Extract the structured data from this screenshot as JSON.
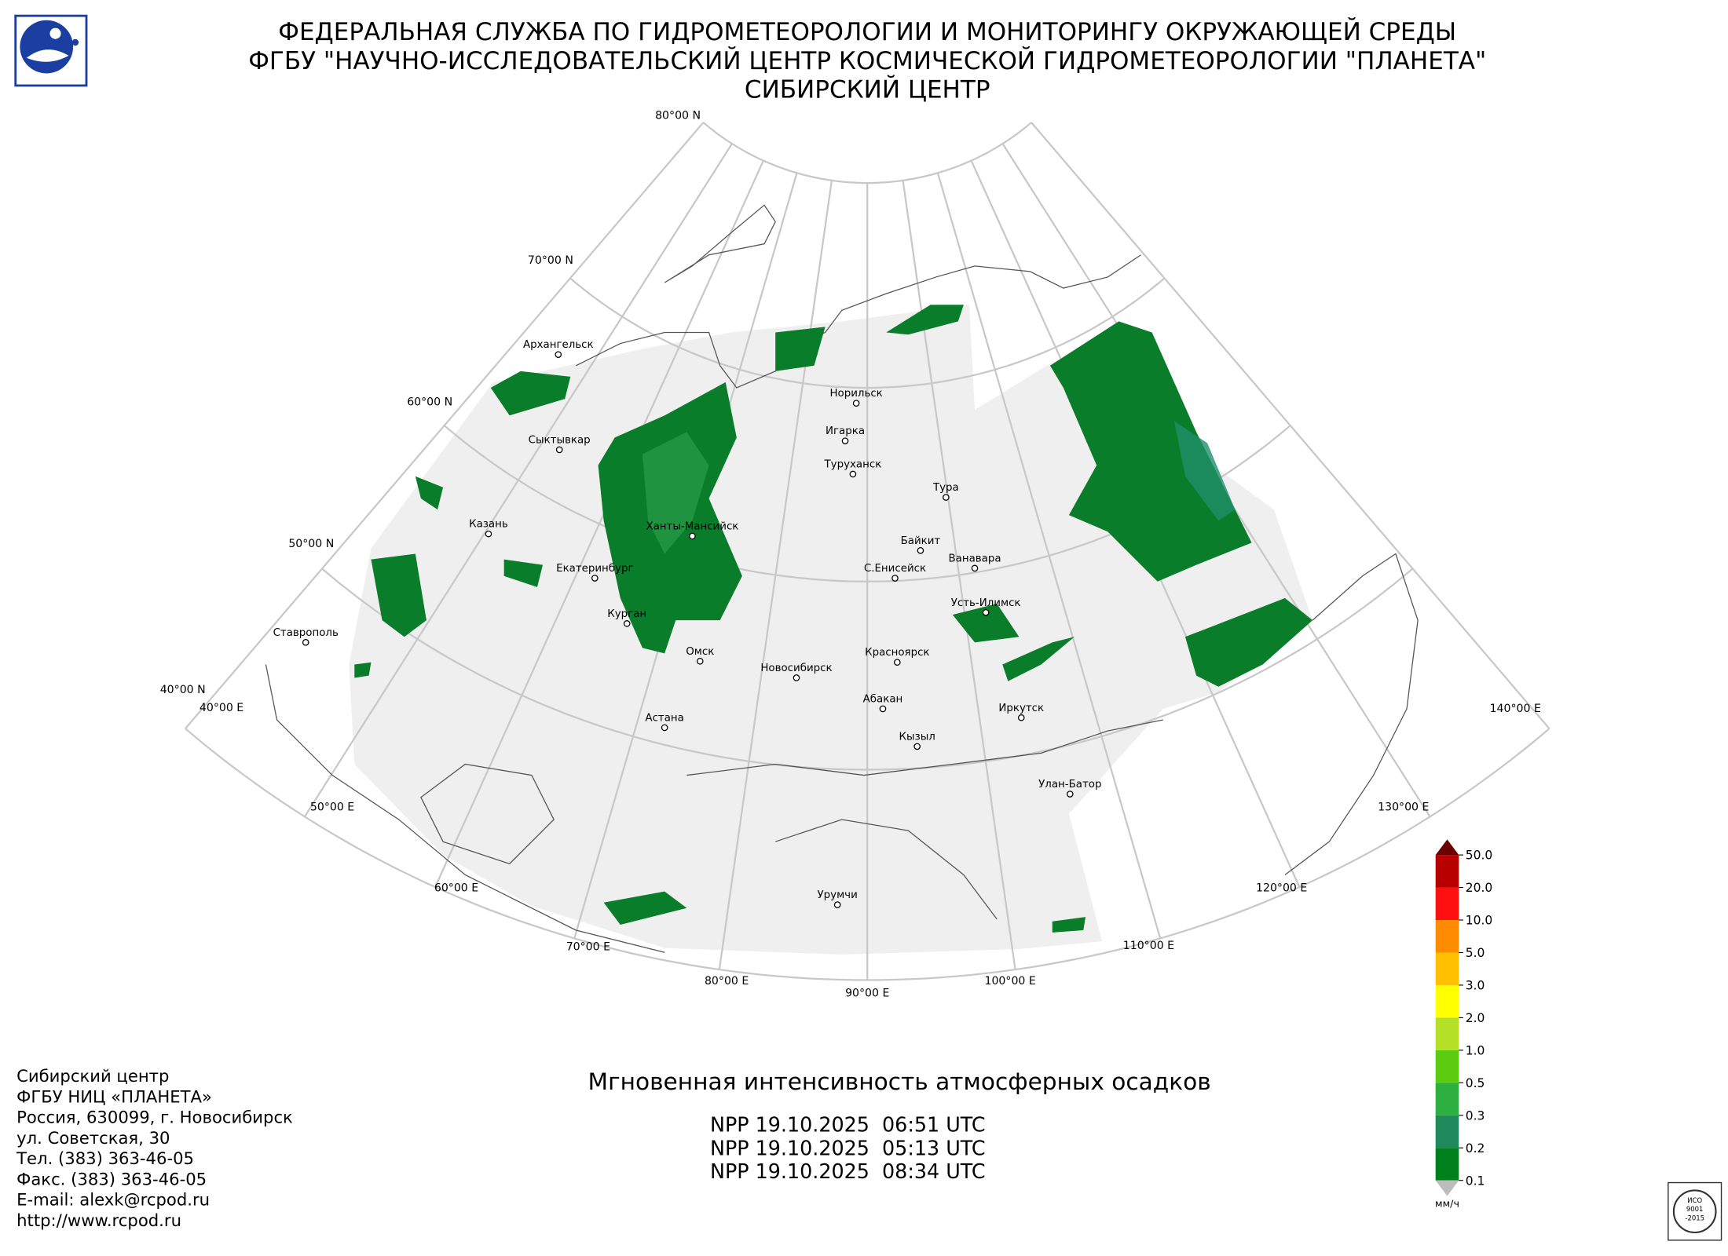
{
  "header": {
    "lines": [
      "ФЕДЕРАЛЬНАЯ СЛУЖБА ПО ГИДРОМЕТЕОРОЛОГИИ И МОНИТОРИНГУ ОКРУЖАЮЩЕЙ СРЕДЫ",
      "ФГБУ \"НАУЧНО-ИССЛЕДОВАТЕЛЬСКИЙ ЦЕНТР КОСМИЧЕСКОЙ ГИДРОМЕТЕОРОЛОГИИ \"ПЛАНЕТА\"",
      "СИБИРСКИЙ ЦЕНТР"
    ]
  },
  "map": {
    "latitude_labels": [
      "80°00 N",
      "70°00 N",
      "60°00 N",
      "50°00 N",
      "40°00 N"
    ],
    "longitude_labels": [
      "40°00 E",
      "50°00 E",
      "60°00 E",
      "70°00 E",
      "80°00 E",
      "90°00 E",
      "100°00 E",
      "110°00 E",
      "120°00 E",
      "130°00 E",
      "140°00 E"
    ],
    "cities": [
      "Архангельск",
      "Сыктывкар",
      "Казань",
      "Ставрополь",
      "Екатеринбург",
      "Курган",
      "Ханты-Мансийск",
      "Омск",
      "Астана",
      "Новосибирск",
      "Норильск",
      "Игарка",
      "Туруханск",
      "Тура",
      "Байкит",
      "Ванавара",
      "С.Енисейск",
      "Усть-Илимск",
      "Красноярск",
      "Абакан",
      "Иркутск",
      "Кызыл",
      "Улан-Батор",
      "Урумчи"
    ]
  },
  "product": {
    "title": "Мгновенная интенсивность атмосферных осадков",
    "passes": [
      "NPP 19.10.2025  06:51 UTC",
      "NPP 19.10.2025  05:13 UTC",
      "NPP 19.10.2025  08:34 UTC"
    ]
  },
  "colorbar": {
    "labels": [
      "0.1",
      "0.2",
      "0.3",
      "0.5",
      "1.0",
      "2.0",
      "3.0",
      "5.0",
      "10.0",
      "20.0",
      "50.0"
    ],
    "colors": [
      "#00801c",
      "#1e8a5c",
      "#2eb040",
      "#5ccc10",
      "#b4e028",
      "#ffff00",
      "#ffc000",
      "#ff8c00",
      "#ff1010",
      "#b80000"
    ],
    "over_color": "#6a0000",
    "under_color": "#bdbdbd",
    "unit": "мм/ч"
  },
  "contacts": [
    "Сибирский центр",
    "ФГБУ НИЦ «ПЛАНЕТА»",
    "Россия, 630099, г. Новосибирск",
    "ул. Советская, 30",
    "Тел. (383) 363-46-05",
    "Факс. (383) 363-46-05",
    "E-mail: alexk@rcpod.ru",
    "http://www.rcpod.ru"
  ],
  "iso_badge": [
    "ИСО",
    "9001",
    "-2015"
  ]
}
